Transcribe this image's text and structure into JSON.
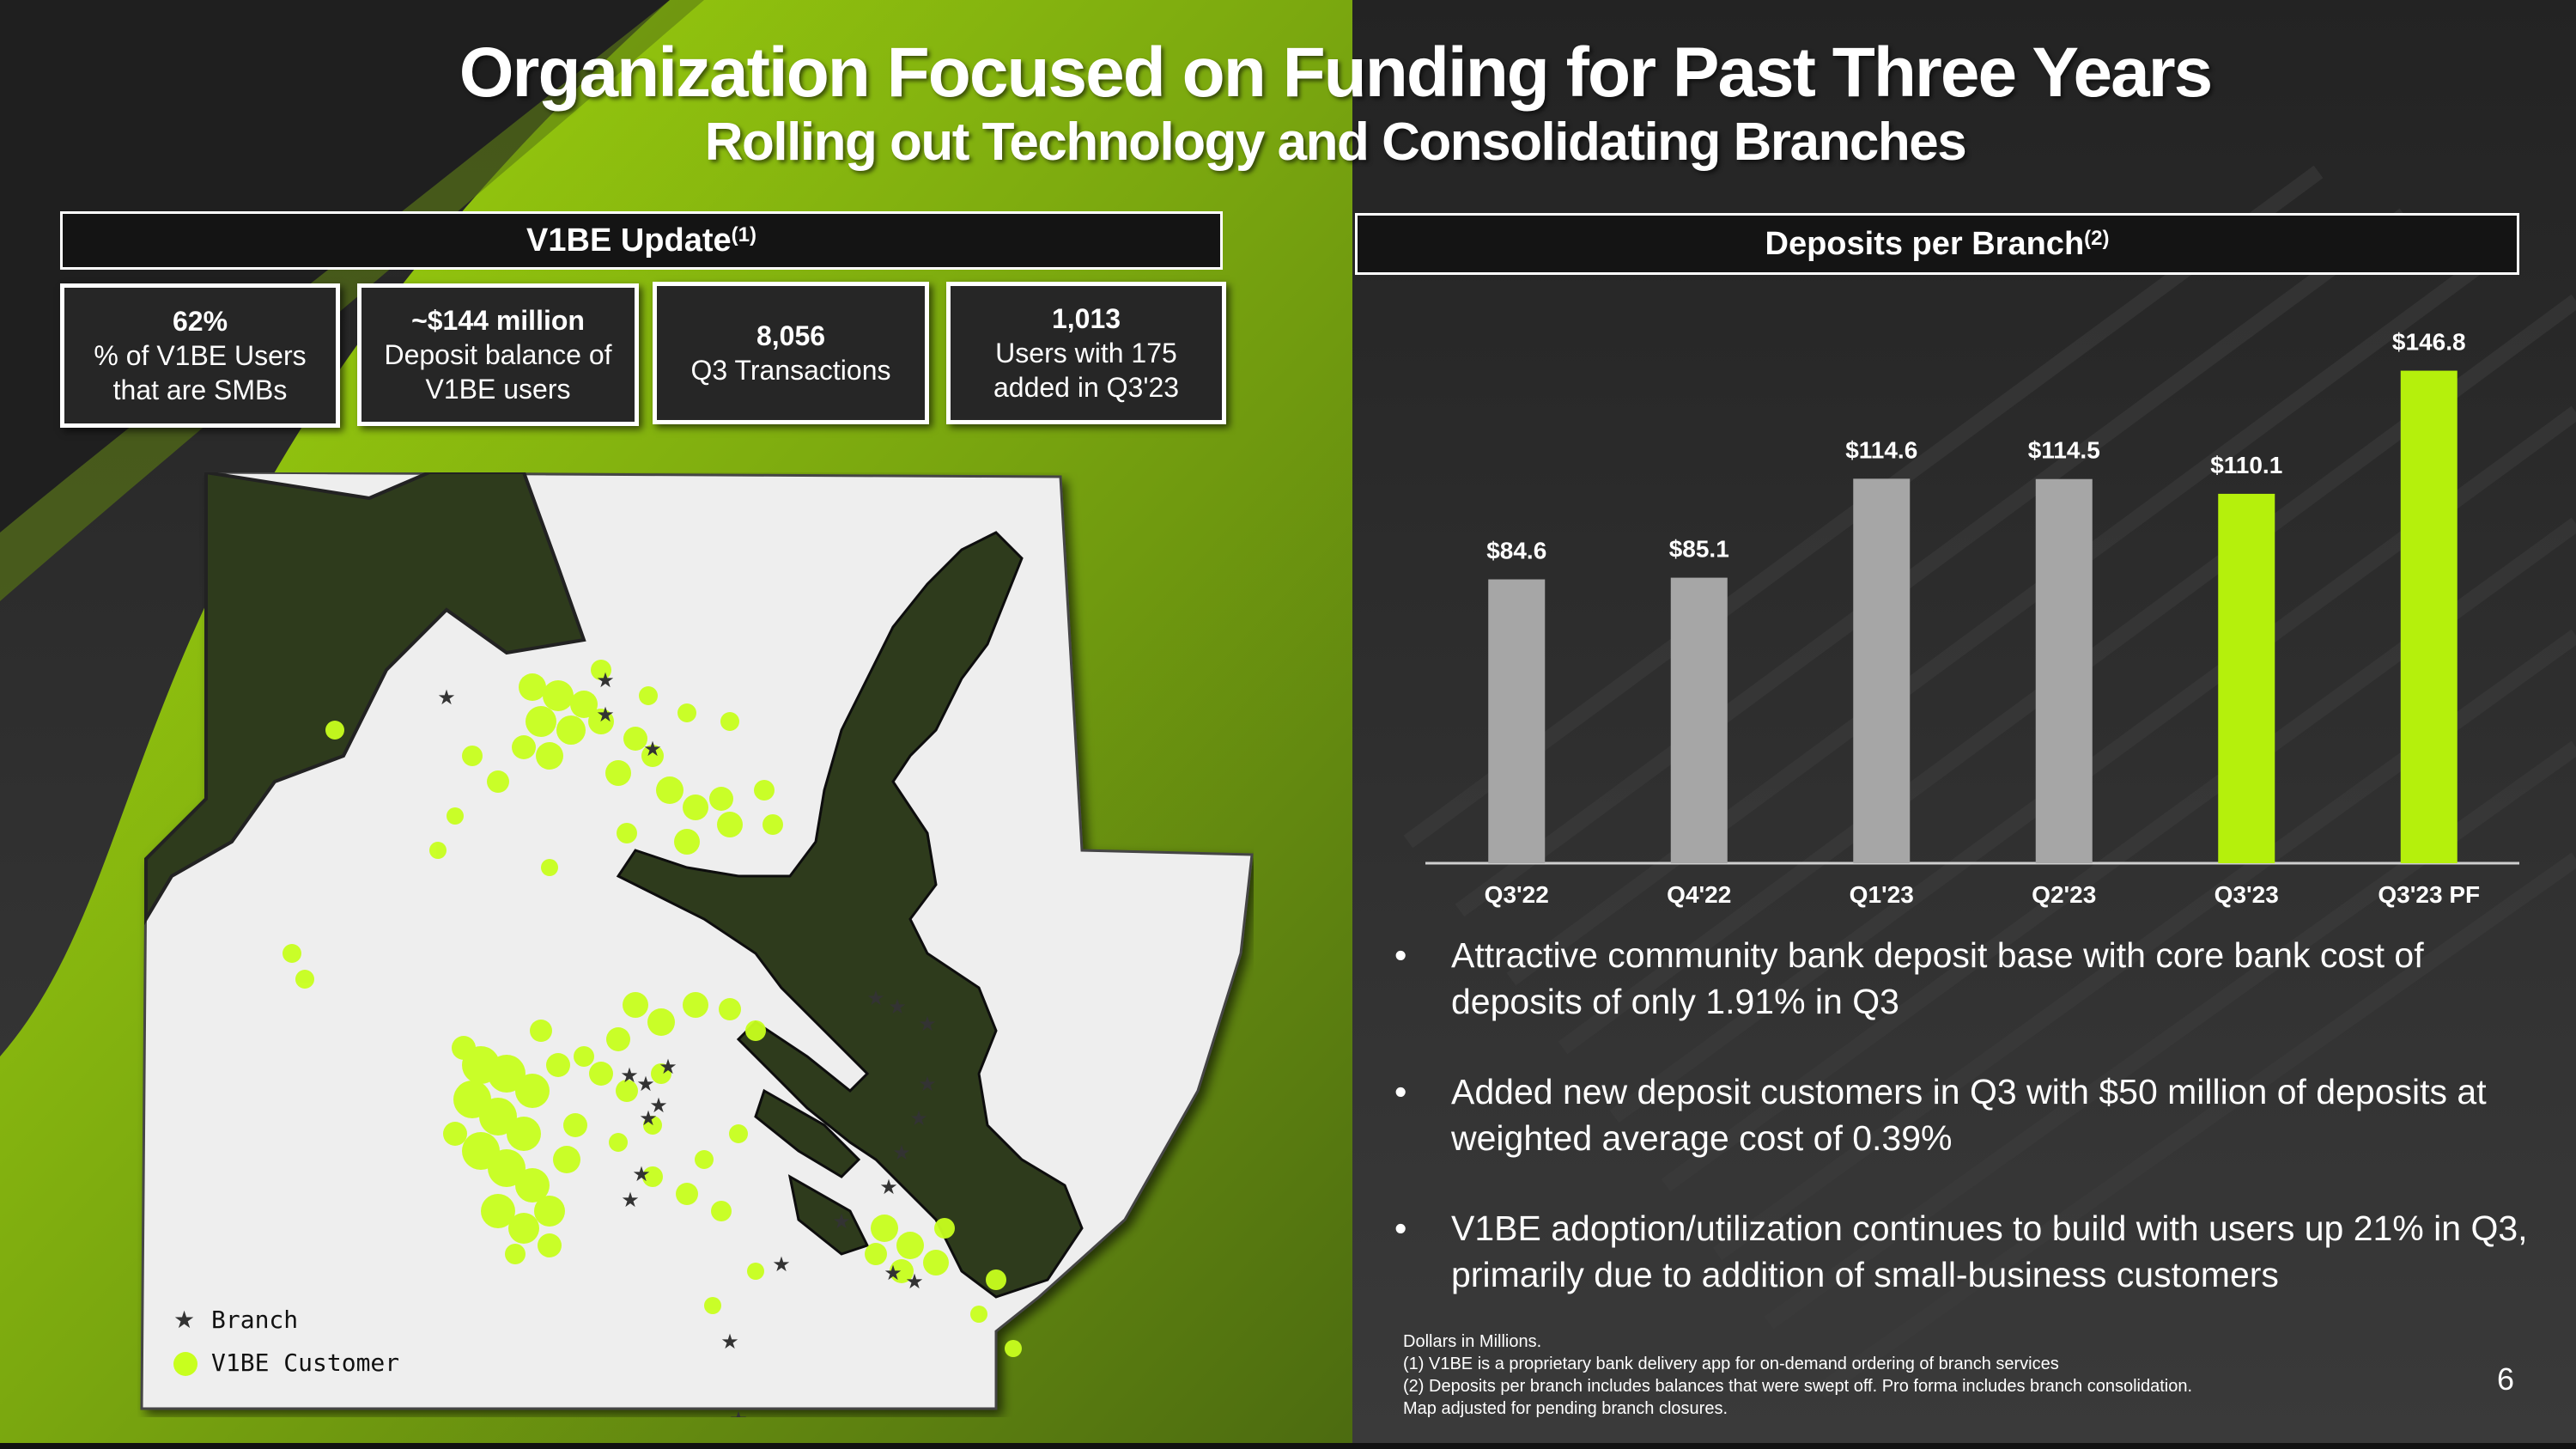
{
  "header": {
    "title": "Organization Focused on Funding for Past Three Years",
    "subtitle": "Rolling out Technology and Consolidating Branches"
  },
  "v1be": {
    "heading": "V1BE Update",
    "heading_note": "(1)",
    "stats": [
      {
        "value": "62%",
        "line1": "% of V1BE Users",
        "line2": "that are SMBs"
      },
      {
        "value": "~$144 million",
        "line1": "Deposit balance of",
        "line2": "V1BE users"
      },
      {
        "value": "8,056",
        "line1": "Q3 Transactions",
        "line2": ""
      },
      {
        "value": "1,013",
        "line1": "Users with 175",
        "line2": "added in Q3'23"
      }
    ]
  },
  "map": {
    "legend": [
      {
        "label": "Branch",
        "icon": "star-icon"
      },
      {
        "label": "V1BE Customer",
        "icon": "dot-icon"
      }
    ],
    "colors": {
      "branch": "#333333",
      "customer": "#c8ff1e",
      "water": "#2e3a1c",
      "land": "#eeeeee"
    }
  },
  "deposits": {
    "heading": "Deposits per Branch",
    "heading_note": "(2)"
  },
  "chart_data": {
    "type": "bar",
    "title": "",
    "categories": [
      "Q3'22",
      "Q4'22",
      "Q1'23",
      "Q2'23",
      "Q3'23",
      "Q3'23 PF"
    ],
    "values": [
      84.6,
      85.1,
      114.6,
      114.5,
      110.1,
      146.8
    ],
    "labels": [
      "$84.6",
      "$85.1",
      "$114.6",
      "$114.5",
      "$110.1",
      "$146.8"
    ],
    "colors": [
      "#a6a6a6",
      "#a6a6a6",
      "#a6a6a6",
      "#a6a6a6",
      "#b5f00c",
      "#b5f00c"
    ],
    "ylim": [
      0,
      160
    ],
    "grid": false,
    "legend": "none",
    "xlabel": "",
    "ylabel": ""
  },
  "bullets": [
    "Attractive community bank deposit base with core bank cost of deposits of only 1.91% in Q3",
    "Added new deposit customers in Q3 with $50 million of deposits at weighted average cost of 0.39%",
    "V1BE adoption/utilization continues to build with users up 21% in Q3, primarily due to addition of small-business customers"
  ],
  "footnotes": [
    "Dollars in Millions.",
    "(1)  V1BE is a proprietary bank delivery app for on-demand ordering of branch services",
    "(2) Deposits per branch includes balances that were swept off. Pro forma includes branch consolidation.",
    "Map adjusted for pending branch closures."
  ],
  "page_number": "6"
}
